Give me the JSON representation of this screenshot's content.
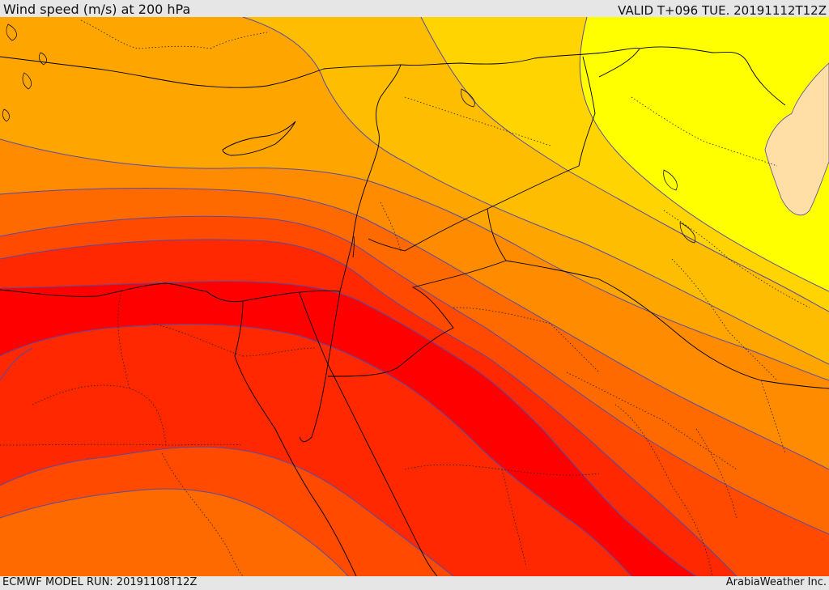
{
  "header": {
    "title": "Wind speed (m/s) at 200 hPa",
    "valid": "VALID T+096 TUE. 20191112T12Z"
  },
  "footer": {
    "model_run": "ECMWF MODEL RUN: 20191108T12Z",
    "credit": "ArabiaWeather Inc."
  },
  "colors": {
    "band_1": "#ffdfa6",
    "band_2": "#ffff00",
    "band_3": "#ffd400",
    "band_4": "#ffbd00",
    "band_5": "#ffa500",
    "band_6": "#ff8c00",
    "band_7": "#ff6a00",
    "band_8": "#ff4a00",
    "band_9": "#ff2800",
    "band_10": "#ff0000",
    "contour": "#5a4aa0",
    "border": "#000000"
  }
}
